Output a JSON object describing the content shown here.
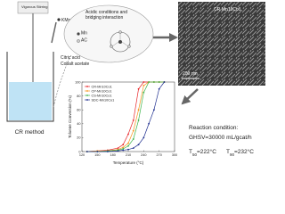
{
  "diagram": {
    "stirring": "Vigorous Stirring",
    "kmno4": {
      "base": "KMnO",
      "sub": "4"
    },
    "bubble_title": "Acidic conditions and bridging interaction",
    "mn": "Mn",
    "ac": "AC",
    "citric": "Citric acid",
    "cobalt": "Cobalt acetate",
    "method": "CR method",
    "sem_label": "CR-Mn10Co1",
    "scale": "200 nm",
    "reaction": "Reaction condition:",
    "ghsv": "GHSV=30000 mL/gcat/h",
    "t50": {
      "symbol": "T",
      "sub": "50",
      "value": "=222°C"
    },
    "t90": {
      "symbol": "T",
      "sub": "90",
      "value": "=232°C"
    }
  },
  "chart_data": {
    "type": "line",
    "x_label": "Temperature (°C)",
    "y_label": "Toluene Conversion (%)",
    "x": [
      130,
      150,
      170,
      190,
      200,
      210,
      220,
      230,
      240,
      250,
      260,
      270,
      280
    ],
    "series": [
      {
        "name": "CR-Mn10Co1",
        "color": "#e8262a",
        "values": [
          0,
          1,
          2,
          5,
          10,
          25,
          45,
          90,
          100,
          100,
          100,
          100,
          100
        ]
      },
      {
        "name": "CP-Mn10Co1",
        "color": "#f7941d",
        "values": [
          0,
          1,
          1,
          3,
          6,
          12,
          30,
          60,
          95,
          100,
          100,
          100,
          100
        ]
      },
      {
        "name": "CS-Mn10Co1",
        "color": "#3cb44b",
        "values": [
          0,
          0,
          1,
          2,
          4,
          8,
          18,
          45,
          85,
          100,
          100,
          100,
          100
        ]
      },
      {
        "name": "SDC-Mn10Co1",
        "color": "#1f2f8f",
        "values": [
          0,
          0,
          0,
          1,
          2,
          3,
          5,
          10,
          20,
          40,
          60,
          90,
          100
        ]
      }
    ],
    "xlim": [
      120,
      300
    ],
    "xticks": [
      120,
      150,
      180,
      210,
      240,
      270,
      300
    ],
    "ylim": [
      0,
      100
    ],
    "yticks": [
      0,
      20,
      40,
      60,
      80,
      100
    ]
  }
}
